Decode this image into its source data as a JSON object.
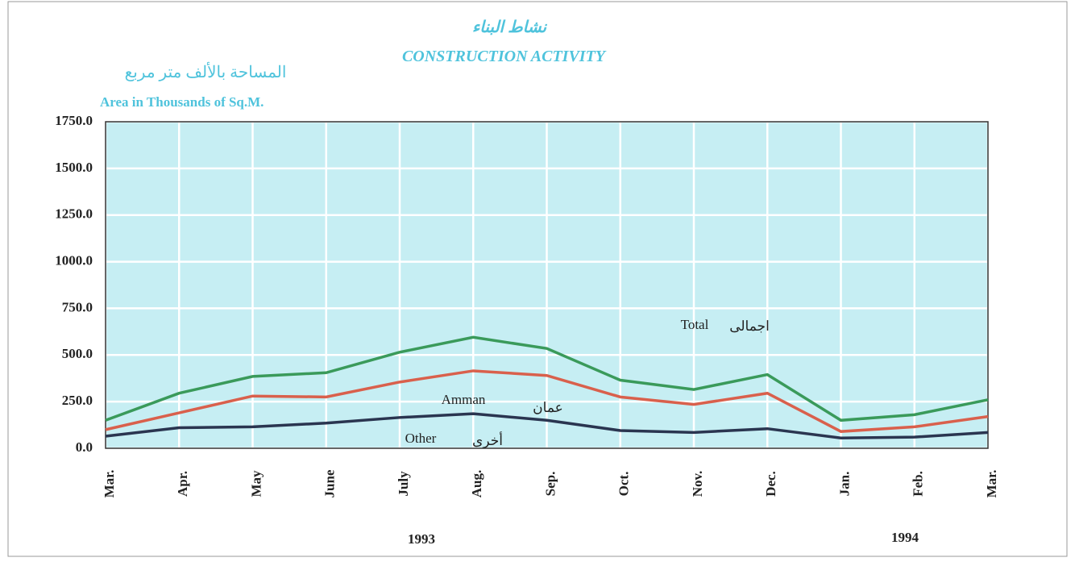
{
  "chart_data": {
    "type": "line",
    "title": "نشاط البناء",
    "subtitle": "CONSTRUCTION ACTIVITY",
    "y_label_ar": "المساحة بالألف متر مربع",
    "y_label": "Area in Thousands of Sq.M.",
    "categories": [
      "Mar.",
      "Apr.",
      "May",
      "June",
      "July",
      "Aug.",
      "Sep.",
      "Oct.",
      "Nov.",
      "Dec.",
      "Jan.",
      "Feb.",
      "Mar."
    ],
    "years": [
      "1993",
      "1994"
    ],
    "series": [
      {
        "name": "Total",
        "name_ar": "اجمالى",
        "color": "#3a9a5a",
        "values": [
          150,
          295,
          385,
          405,
          515,
          595,
          535,
          365,
          315,
          395,
          150,
          180,
          260
        ]
      },
      {
        "name": "Amman",
        "name_ar": "عمان",
        "color": "#d9604c",
        "values": [
          100,
          190,
          280,
          275,
          355,
          415,
          390,
          275,
          235,
          295,
          90,
          115,
          170
        ]
      },
      {
        "name": "Other",
        "name_ar": "أخرى",
        "color": "#2a3550",
        "values": [
          65,
          110,
          115,
          135,
          165,
          185,
          150,
          95,
          85,
          105,
          55,
          60,
          85
        ]
      }
    ],
    "ylim": [
      0,
      1750
    ],
    "yticks": [
      {
        "value": 0,
        "label": "0.0"
      },
      {
        "value": 250,
        "label": "250.0"
      },
      {
        "value": 500,
        "label": "500.0"
      },
      {
        "value": 750,
        "label": "750.0"
      },
      {
        "value": 1000,
        "label": "1000.0"
      },
      {
        "value": 1250,
        "label": "1250.0"
      },
      {
        "value": 1500,
        "label": "1500.0"
      },
      {
        "value": 1750,
        "label": "1750.0"
      }
    ],
    "grid": true,
    "plot_background": "#c6eef3"
  }
}
